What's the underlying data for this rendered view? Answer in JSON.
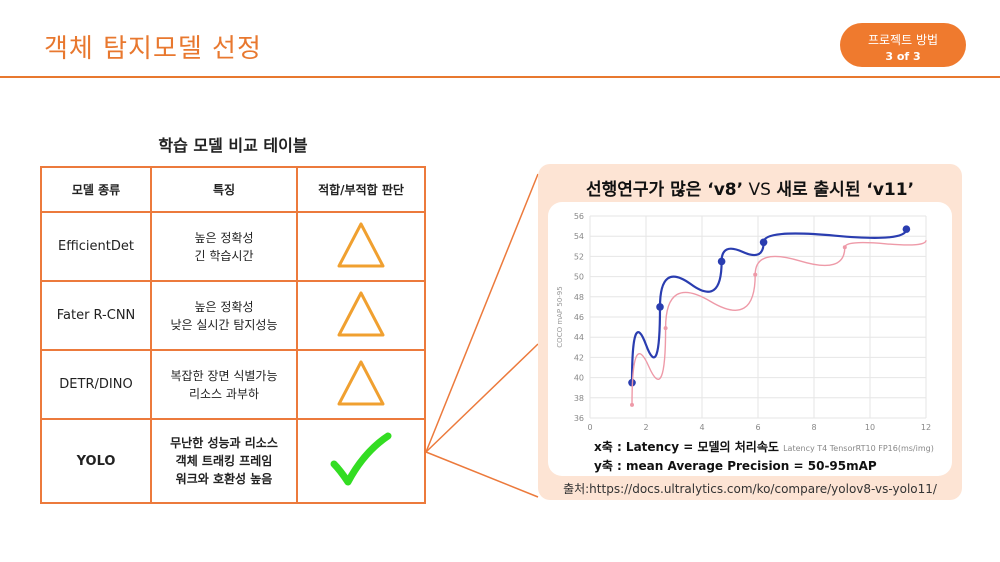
{
  "header": {
    "title": "객체 탐지모델 선정",
    "badge_line1": "프로젝트 방법",
    "badge_line2": "3 of 3"
  },
  "table": {
    "caption": "학습 모델 비교 테이블",
    "headers": [
      "모델 종류",
      "특징",
      "적합/부적합 판단"
    ],
    "rows": [
      {
        "model": "EfficientDet",
        "feature1": "높은 정확성",
        "feature2": "긴 학습시간",
        "verdict": "triangle-icon"
      },
      {
        "model": "Fater R-CNN",
        "feature1": "높은 정확성",
        "feature2": "낮은 실시간 탐지성능",
        "verdict": "triangle-icon"
      },
      {
        "model": "DETR/DINO",
        "feature1": "복잡한 장면 식별가능",
        "feature2": "리소스 과부하",
        "verdict": "triangle-icon"
      },
      {
        "model": "YOLO",
        "feature1": "무난한 성능과 리소스",
        "feature2": "객체 트래킹 프레임",
        "feature3": "워크와 호환성 높음",
        "verdict": "check-icon"
      }
    ]
  },
  "panel": {
    "title_part1": "선행연구가 많은 ‘v8’",
    "title_vs": " VS ",
    "title_part2": "새로 출시된 ‘v11’",
    "x_caption": "x축 : Latency = 모델의 처리속도",
    "x_axis_label": "Latency T4 TensorRT10 FP16(ms/img)",
    "y_caption": "y축 : mean Average Precision = 50-95mAP",
    "source": "출처:https://docs.ultralytics.com/ko/compare/yolov8-vs-yolo11/"
  },
  "chart_data": {
    "type": "line",
    "xlabel": "Latency T4 TensorRT10 FP16(ms/img)",
    "ylabel": "COCO mAP 50-95",
    "xlim": [
      0,
      12
    ],
    "ylim": [
      36,
      56
    ],
    "x_ticks": [
      "0",
      "2",
      "4",
      "6",
      "8",
      "10",
      "12"
    ],
    "y_ticks": [
      "36",
      "38",
      "40",
      "42",
      "44",
      "46",
      "48",
      "50",
      "52",
      "54",
      "56"
    ],
    "series": [
      {
        "color": "#2a3db0",
        "points": [
          [
            1.5,
            39.5
          ],
          [
            2.5,
            47.0
          ],
          [
            4.7,
            51.5
          ],
          [
            6.2,
            53.4
          ],
          [
            11.3,
            54.7
          ]
        ]
      },
      {
        "color": "#ee9aa8",
        "points": [
          [
            1.5,
            37.3
          ],
          [
            2.7,
            44.9
          ],
          [
            5.9,
            50.2
          ],
          [
            9.1,
            52.9
          ],
          [
            12.0,
            53.6
          ]
        ]
      }
    ],
    "grid": true
  },
  "colors": {
    "accent": "#e8782f",
    "triangle": "#f0a030",
    "check": "#33dd22"
  }
}
